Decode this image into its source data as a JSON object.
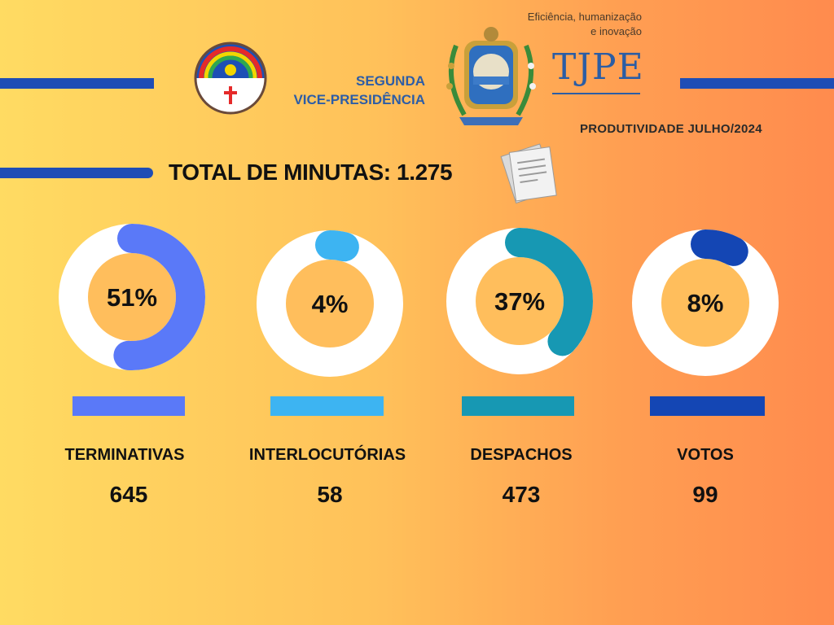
{
  "header": {
    "vice_presidency": [
      "SEGUNDA",
      "VICE-PRESIDÊNCIA"
    ],
    "slogan": [
      "Eficiência, humanização",
      "e inovação"
    ],
    "court_logo": "TJPE",
    "period": "PRODUTIVIDADE JULHO/2024"
  },
  "total": {
    "label": "TOTAL DE MINUTAS: 1.275"
  },
  "colors": {
    "track": "#FFFFFF",
    "hole": "#FFBE5C",
    "terminativas": "#5A79F8",
    "interlocutorias": "#3DB4F2",
    "despachos": "#1798B3",
    "votos": "#1446B4"
  },
  "icons": [
    "pernambuco-flag-icon",
    "tjpe-crest-icon",
    "documents-icon"
  ],
  "chart_data": {
    "type": "pie",
    "title": "TOTAL DE MINUTAS: 1.275",
    "categories": [
      "TERMINATIVAS",
      "INTERLOCUTÓRIAS",
      "DESPACHOS",
      "VOTOS"
    ],
    "values": [
      645,
      58,
      473,
      99
    ],
    "percent_labels": [
      "51%",
      "4%",
      "37%",
      "8%"
    ],
    "percent": [
      51,
      4,
      37,
      8
    ],
    "series_colors": [
      "#5A79F8",
      "#3DB4F2",
      "#1798B3",
      "#1446B4"
    ]
  }
}
